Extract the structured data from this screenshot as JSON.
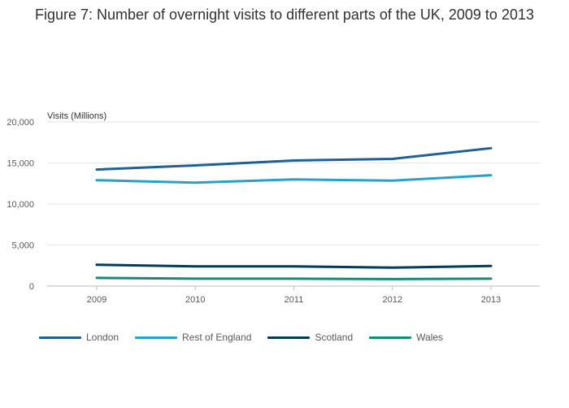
{
  "chart_data": {
    "type": "line",
    "title": "Figure 7: Number of overnight visits to different parts of the UK, 2009 to 2013",
    "ylabel": "Visits (Millions)",
    "xlabel": "",
    "categories": [
      "2009",
      "2010",
      "2011",
      "2012",
      "2013"
    ],
    "ylim": [
      0,
      20000
    ],
    "yticks": [
      0,
      5000,
      10000,
      15000,
      20000
    ],
    "ytick_labels": [
      "0",
      "5,000",
      "10,000",
      "15,000",
      "20,000"
    ],
    "grid": true,
    "legend_position": "bottom",
    "series": [
      {
        "name": "London",
        "color": "#206095",
        "values": [
          14200,
          14700,
          15300,
          15500,
          16800
        ]
      },
      {
        "name": "Rest of England",
        "color": "#27a0cc",
        "values": [
          12900,
          12600,
          13000,
          12850,
          13500
        ]
      },
      {
        "name": "Scotland",
        "color": "#003c57",
        "values": [
          2600,
          2400,
          2400,
          2250,
          2450
        ]
      },
      {
        "name": "Wales",
        "color": "#118c7b",
        "values": [
          1000,
          900,
          900,
          850,
          900
        ]
      }
    ]
  }
}
